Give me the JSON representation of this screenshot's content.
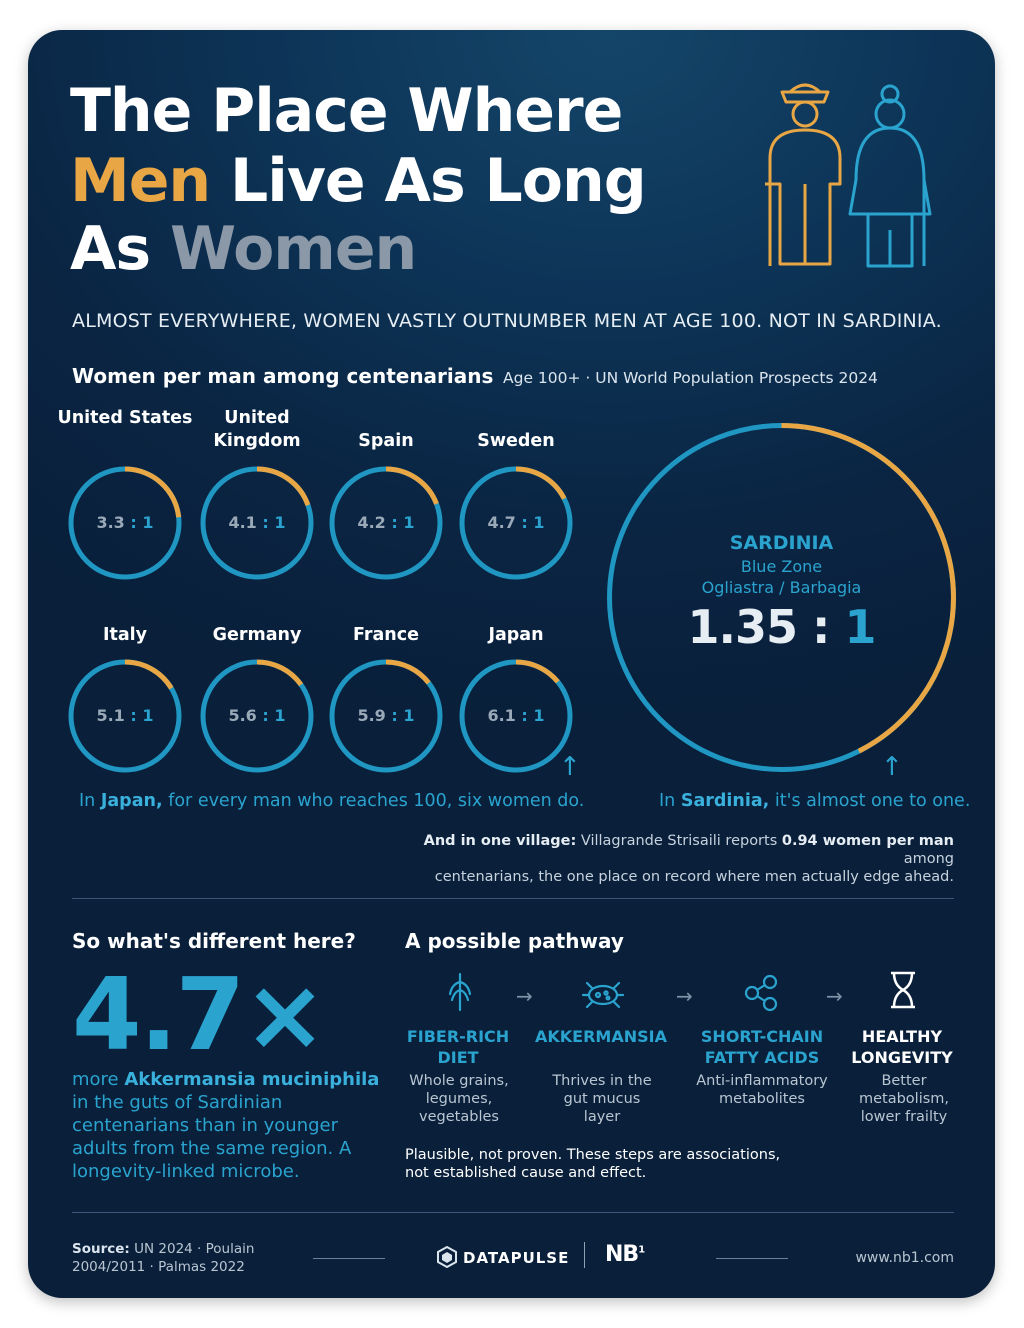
{
  "title": {
    "line1": "The Place Where",
    "line2a": "Men",
    "line2b": "Live As Long",
    "line3a": "As",
    "line3b": "Women"
  },
  "subtitle": "ALMOST EVERYWHERE, WOMEN VASTLY OUTNUMBER MEN AT AGE 100. NOT IN SARDINIA.",
  "chart_section": {
    "title": "Women per man among centenarians",
    "note": "Age 100+ · UN World Population Prospects 2024"
  },
  "chart_data": {
    "type": "donut",
    "series_name": "Women per man among centenarians",
    "categories": [
      "United States",
      "United Kingdom",
      "Spain",
      "Sweden",
      "Italy",
      "Germany",
      "France",
      "Japan",
      "Sardinia"
    ],
    "values": [
      3.3,
      4.1,
      4.2,
      4.7,
      5.1,
      5.6,
      5.9,
      6.1,
      1.35
    ],
    "colors": {
      "women": "#1f97c2",
      "men": "#e8a644"
    }
  },
  "countries": [
    {
      "name": "United States",
      "ratio": "3.3",
      "sep": ":",
      "one": "1"
    },
    {
      "name": "United Kingdom",
      "ratio": "4.1",
      "sep": ":",
      "one": "1"
    },
    {
      "name": "Spain",
      "ratio": "4.2",
      "sep": ":",
      "one": "1"
    },
    {
      "name": "Sweden",
      "ratio": "4.7",
      "sep": ":",
      "one": "1"
    },
    {
      "name": "Italy",
      "ratio": "5.1",
      "sep": ":",
      "one": "1"
    },
    {
      "name": "Germany",
      "ratio": "5.6",
      "sep": ":",
      "one": "1"
    },
    {
      "name": "France",
      "ratio": "5.9",
      "sep": ":",
      "one": "1"
    },
    {
      "name": "Japan",
      "ratio": "6.1",
      "sep": ":",
      "one": "1"
    }
  ],
  "sardinia": {
    "name": "SARDINIA",
    "zone": "Blue Zone",
    "region": "Ogliastra / Barbagia",
    "ratio": "1.35",
    "sep": ":",
    "one": "1"
  },
  "captions": {
    "japan_pre": "In",
    "japan_bold": "Japan,",
    "japan_post": "for every man who reaches 100, six women do.",
    "sardinia_pre": "In",
    "sardinia_bold": "Sardinia,",
    "sardinia_post": "it's almost one to one."
  },
  "village": {
    "bold1": "And in one village:",
    "text1": "Villagrande Strisaili reports",
    "bold2": "0.94 women per man",
    "text2": "among",
    "line2": "centenarians, the one place on record where men actually edge ahead."
  },
  "different": {
    "title": "So what's different here?",
    "big": "4.7×",
    "pre": "more",
    "bold": "Akkermansia muciniphila",
    "rest": "in the guts of Sardinian centenarians than in younger adults from the same region. A longevity-linked microbe."
  },
  "pathway": {
    "title": "A possible pathway",
    "steps": [
      {
        "icon": "wheat-icon",
        "title": "FIBER-RICH DIET",
        "desc": "Whole grains, legumes, vegetables"
      },
      {
        "icon": "microbe-icon",
        "title": "AKKERMANSIA",
        "desc": "Thrives in the gut mucus layer"
      },
      {
        "icon": "molecule-icon",
        "title": "SHORT-CHAIN FATTY ACIDS",
        "desc": "Anti-inflammatory metabolites"
      },
      {
        "icon": "hourglass-icon",
        "title": "HEALTHY LONGEVITY",
        "desc": "Better metabolism, lower frailty"
      }
    ],
    "arrow": "→",
    "disclaimer": "Plausible, not proven. These steps are associations, not established cause and effect."
  },
  "footer": {
    "source_label": "Source:",
    "source_text": "UN 2024 · Poulain 2004/2011 · Palmas 2022",
    "brand1": "DATAPULSE",
    "brand2": "NB",
    "brand2_sup": "1",
    "url": "www.nb1.com"
  },
  "up_arrow": "↑"
}
